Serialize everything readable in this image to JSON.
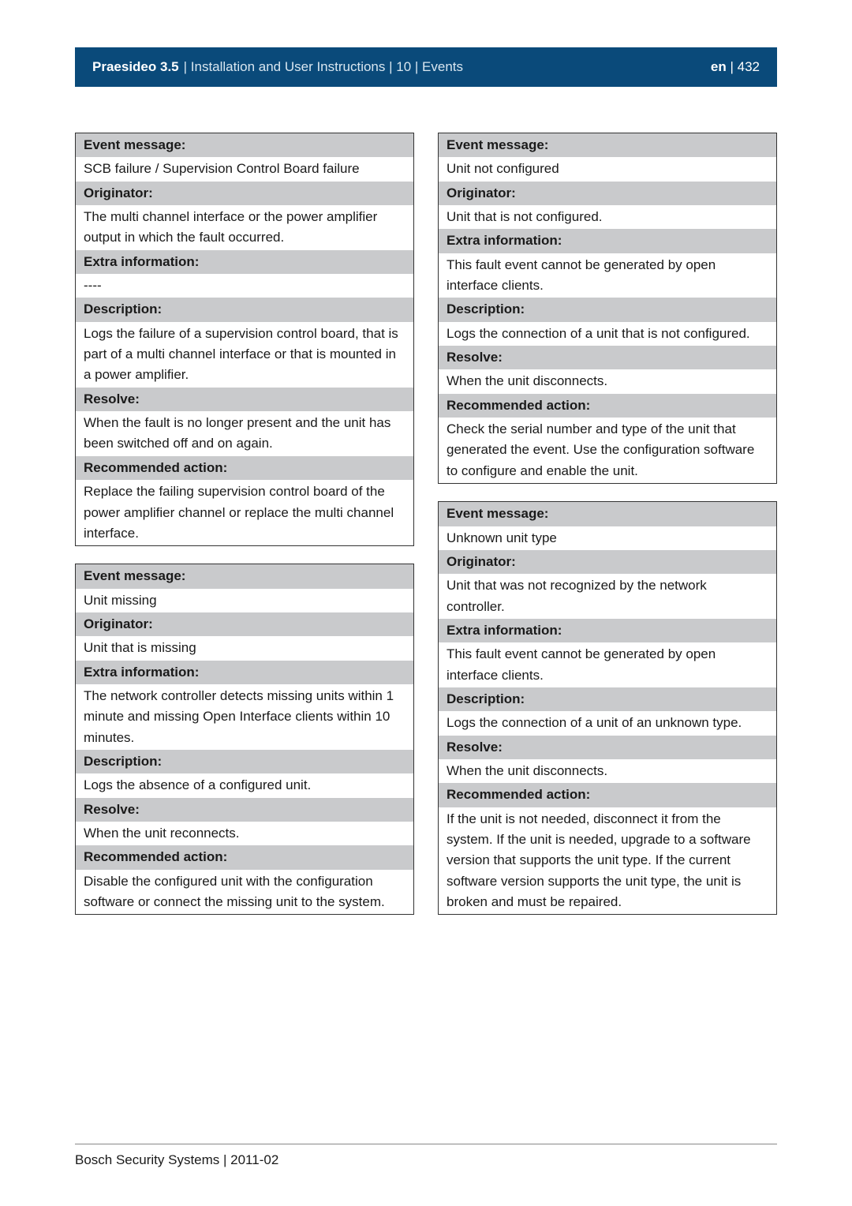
{
  "header": {
    "product": "Praesideo 3.5",
    "subtitle": " | Installation and User Instructions | 10 | Events",
    "lang": "en",
    "page": " | 432"
  },
  "left": {
    "box1": {
      "event_message_h": "Event message:",
      "event_message": "SCB failure / Supervision Control Board failure",
      "originator_h": "Originator:",
      "originator": "The multi channel interface or the power amplifier output in which the fault occurred.",
      "extra_h": "Extra information:",
      "extra": "----",
      "desc_h": "Description:",
      "desc": "Logs the failure of a supervision control board, that is part of a multi channel interface or that is mounted in a power amplifier.",
      "resolve_h": "Resolve:",
      "resolve": "When the fault is no longer present and the unit has been switched off and on again.",
      "rec_h": "Recommended action:",
      "rec": "Replace the failing supervision control board of the power amplifier channel or replace the multi channel interface."
    },
    "box2": {
      "event_message_h": "Event message:",
      "event_message": "Unit missing",
      "originator_h": "Originator:",
      "originator": "Unit that is missing",
      "extra_h": "Extra information:",
      "extra": "The network controller detects missing units within 1 minute and missing Open Interface clients within 10 minutes.",
      "desc_h": "Description:",
      "desc": "Logs the absence of a configured unit.",
      "resolve_h": "Resolve:",
      "resolve": "When the unit reconnects.",
      "rec_h": "Recommended action:",
      "rec": "Disable the configured unit with the configuration software or connect the missing unit to the system."
    }
  },
  "right": {
    "box1": {
      "event_message_h": "Event message:",
      "event_message": "Unit not configured",
      "originator_h": "Originator:",
      "originator": "Unit that is not configured.",
      "extra_h": "Extra information:",
      "extra": "This fault event cannot be generated by open interface clients.",
      "desc_h": "Description:",
      "desc": "Logs the connection of a unit that is not configured.",
      "resolve_h": "Resolve:",
      "resolve": "When the unit disconnects.",
      "rec_h": "Recommended action:",
      "rec": "Check the serial number and type of the unit that generated the event. Use the configuration software to configure and enable the unit."
    },
    "box2": {
      "event_message_h": "Event message:",
      "event_message": "Unknown unit type",
      "originator_h": "Originator:",
      "originator": "Unit that was not recognized by the network controller.",
      "extra_h": "Extra information:",
      "extra": "This fault event cannot be generated by open interface clients.",
      "desc_h": "Description:",
      "desc": "Logs the connection of a unit of an unknown type.",
      "resolve_h": "Resolve:",
      "resolve": "When the unit disconnects.",
      "rec_h": "Recommended action:",
      "rec": "If the unit is not needed, disconnect it from the system. If the unit is needed, upgrade to a software version that supports the unit type. If the current software version supports the unit type, the unit is broken and must be repaired."
    }
  },
  "footer": "Bosch Security Systems | 2011-02"
}
